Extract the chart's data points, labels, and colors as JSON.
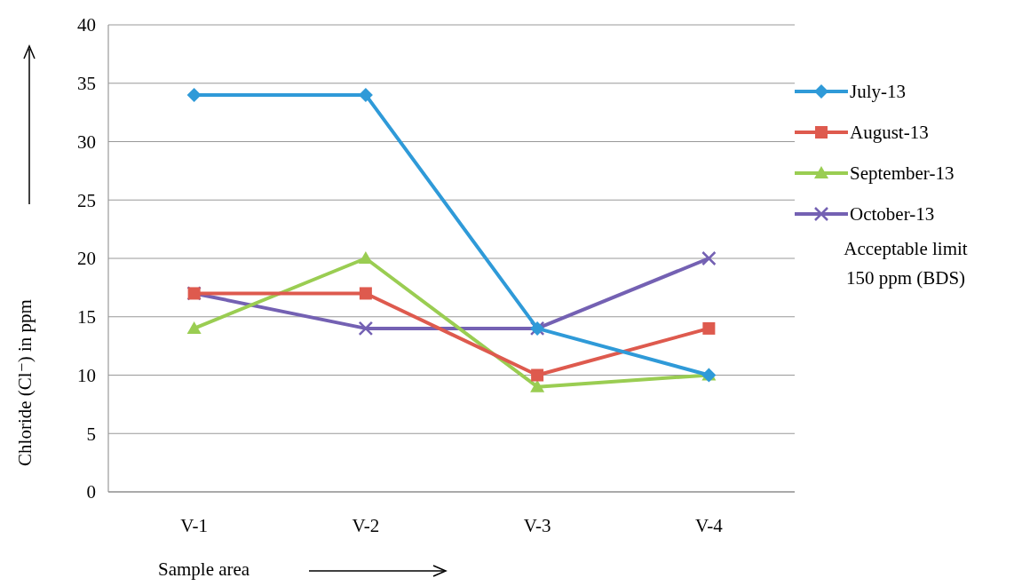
{
  "chart_data": {
    "type": "line",
    "ylabel": "Chloride (Cl⁻) in ppm",
    "xlabel": "Sample area",
    "categories": [
      "V-1",
      "V-2",
      "V-3",
      "V-4"
    ],
    "series": [
      {
        "name": "July-13",
        "color": "#2f9ad8",
        "marker": "diamond",
        "values": [
          34,
          34,
          14,
          10
        ]
      },
      {
        "name": "August-13",
        "color": "#de5a4e",
        "marker": "square",
        "values": [
          17,
          17,
          10,
          14
        ]
      },
      {
        "name": "September-13",
        "color": "#9acd52",
        "marker": "triangle",
        "values": [
          14,
          20,
          9,
          10
        ]
      },
      {
        "name": "October-13",
        "color": "#7461b3",
        "marker": "cross",
        "values": [
          17,
          14,
          14,
          20
        ]
      }
    ],
    "ylim": [
      0,
      40
    ],
    "yticks": [
      0,
      5,
      10,
      15,
      20,
      25,
      30,
      35,
      40
    ],
    "grid": "y",
    "legend": "right",
    "annotations": [
      "Acceptable limit 150 ppm (BDS)"
    ]
  }
}
